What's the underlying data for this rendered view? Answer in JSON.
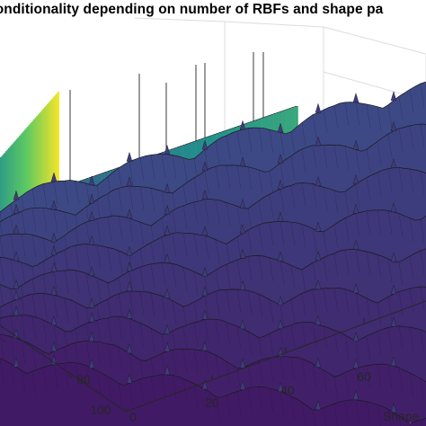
{
  "chart_data": {
    "type": "surface",
    "title": "conditionality depending on number of RBFs and shape pa",
    "xlabel": "Shape",
    "x_ticks": [
      0,
      20,
      40,
      60
    ],
    "y_ticks": [
      80,
      100
    ],
    "colormap": "viridis",
    "grid": true,
    "series": [
      {
        "values": [
          0.55,
          0.62,
          0.58,
          0.66,
          0.6,
          0.7,
          0.63,
          0.68,
          0.61,
          0.72,
          0.64,
          0.69,
          0.62,
          0.7,
          0.58,
          0.66,
          0.6,
          0.64,
          0.56,
          0.52
        ]
      }
    ]
  },
  "colors": {
    "axis": "#262626",
    "grid": "#dcdcdc",
    "edge": "#1a1a1a",
    "viridis_low": "#440154",
    "viridis_mid": "#21918c",
    "viridis_high": "#fde725"
  }
}
